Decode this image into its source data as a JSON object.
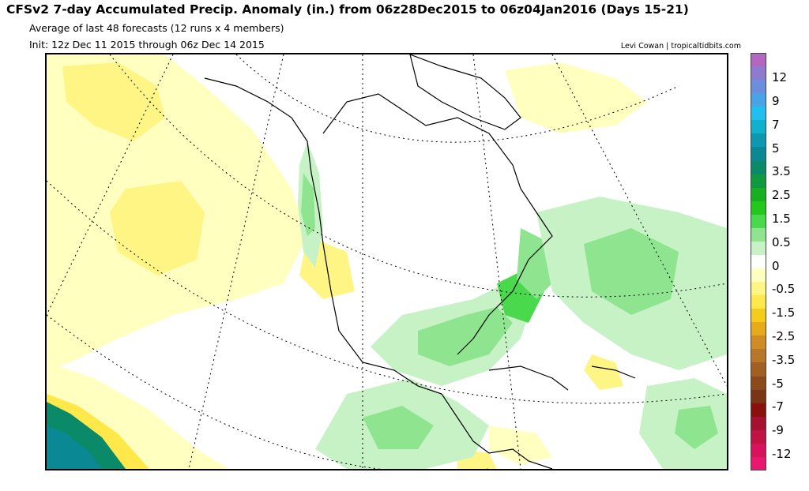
{
  "header": {
    "title": "CFSv2 7-day Accumulated Precip. Anomaly (in.) from 06z28Dec2015 to 06z04Jan2016 (Days 15-21)",
    "subtitle1": "Average of last 48 forecasts (12 runs x 4 members)",
    "subtitle2": "Init: 12z Dec 11 2015 through 06z Dec 14 2015",
    "credit": "Levi Cowan | tropicaltidbits.com"
  },
  "map": {
    "region": "North America",
    "projection": "polar stereographic",
    "field": "7-day accumulated precipitation anomaly",
    "units": "in."
  },
  "colorbar": {
    "colors": [
      "#b267c0",
      "#8e7bd0",
      "#6b8fdd",
      "#4aa3e7",
      "#20bff0",
      "#10b0cf",
      "#0c98b0",
      "#0a8894",
      "#0b8a6a",
      "#0f9a3f",
      "#17b022",
      "#22c81b",
      "#4ad84c",
      "#8fe58f",
      "#c6f2c6",
      "#ffffff",
      "#ffffc0",
      "#fff585",
      "#ffe84a",
      "#f5cc1c",
      "#e6aa1a",
      "#cf8c25",
      "#b87628",
      "#a15f22",
      "#8c4a1c",
      "#7a3416",
      "#8a0f0f",
      "#a51230",
      "#c01244",
      "#d9125c",
      "#e8186f"
    ],
    "tick_labels": [
      "12",
      "9",
      "7",
      "5",
      "3.5",
      "2.5",
      "1.5",
      "0.5",
      "0",
      "-0.5",
      "-1.5",
      "-2.5",
      "-3.5",
      "-5",
      "-7",
      "-9",
      "-12"
    ]
  }
}
